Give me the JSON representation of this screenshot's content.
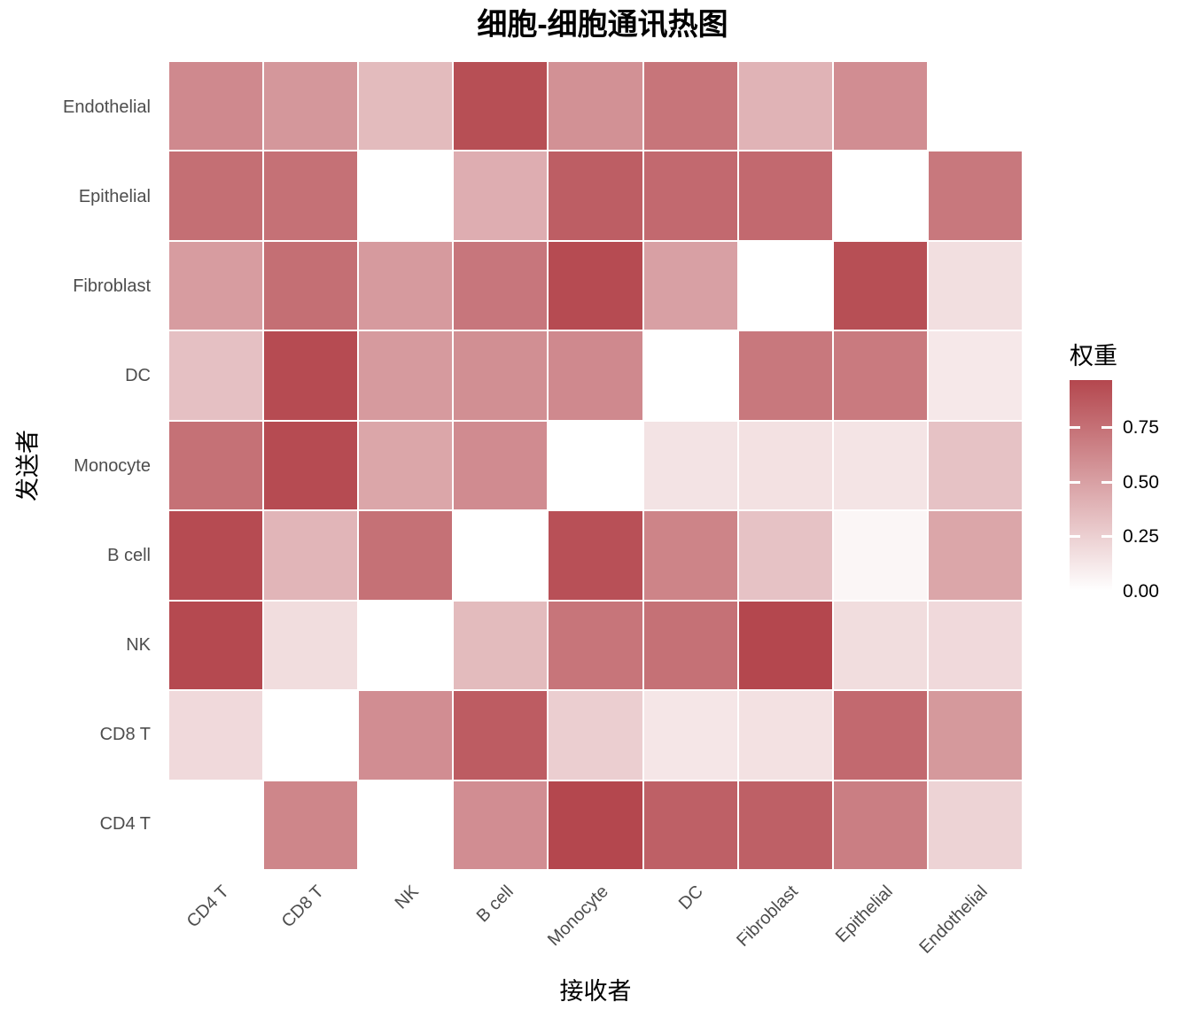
{
  "chart_data": {
    "type": "heatmap",
    "title": "细胞-细胞通讯热图",
    "xlabel": "接收者",
    "ylabel": "发送者",
    "legend_title": "权重",
    "columns": [
      "CD4 T",
      "CD8 T",
      "NK",
      "B cell",
      "Monocyte",
      "DC",
      "Fibroblast",
      "Epithelial",
      "Endothelial"
    ],
    "rows": [
      "Endothelial",
      "Epithelial",
      "Fibroblast",
      "DC",
      "Monocyte",
      "B cell",
      "NK",
      "CD8 T",
      "CD4 T"
    ],
    "values": [
      [
        0.62,
        0.55,
        0.36,
        0.93,
        0.58,
        0.73,
        0.4,
        0.6,
        0.0
      ],
      [
        0.76,
        0.75,
        0.0,
        0.43,
        0.85,
        0.79,
        0.79,
        0.0,
        0.71
      ],
      [
        0.52,
        0.76,
        0.53,
        0.72,
        0.95,
        0.5,
        0.0,
        0.93,
        0.17
      ],
      [
        0.33,
        0.95,
        0.53,
        0.59,
        0.62,
        0.0,
        0.71,
        0.7,
        0.12
      ],
      [
        0.75,
        0.95,
        0.47,
        0.61,
        0.0,
        0.15,
        0.16,
        0.14,
        0.32
      ],
      [
        0.95,
        0.39,
        0.75,
        0.0,
        0.92,
        0.65,
        0.32,
        0.05,
        0.47
      ],
      [
        0.96,
        0.18,
        0.0,
        0.36,
        0.73,
        0.75,
        0.97,
        0.18,
        0.2
      ],
      [
        0.2,
        0.0,
        0.6,
        0.86,
        0.26,
        0.13,
        0.16,
        0.79,
        0.54
      ],
      [
        0.0,
        0.64,
        0.0,
        0.6,
        0.97,
        0.84,
        0.84,
        0.68,
        0.23
      ]
    ],
    "vmin": 0.0,
    "vmax": 0.97,
    "color_low": "#FFFFFF",
    "color_high": "#B4474E",
    "axis_text_color": "#4D4D4D",
    "legend_ticks": [
      {
        "label": "0.75",
        "value": 0.75
      },
      {
        "label": "0.50",
        "value": 0.5
      },
      {
        "label": "0.25",
        "value": 0.25
      },
      {
        "label": "0.00",
        "value": 0.0
      }
    ],
    "legend_position": "right",
    "grid": "off",
    "tile_gap_color": "#FFFFFF"
  }
}
